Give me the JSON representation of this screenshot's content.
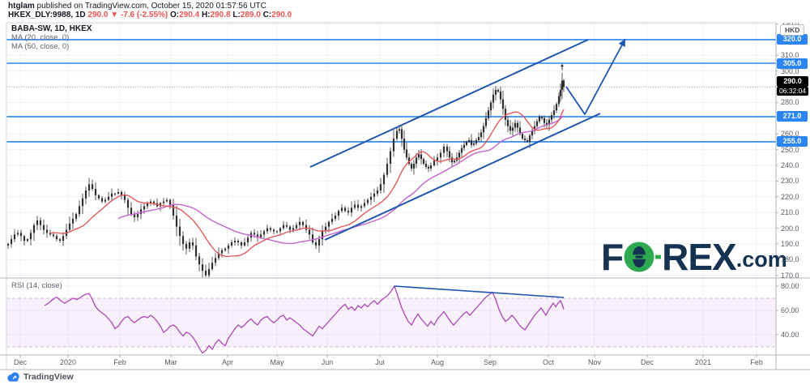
{
  "header": {
    "byline_user": "htglam",
    "byline_rest": " published on TradingView.com, October 15, 2020 01:57:56 UTC",
    "symbol": "HKEX_DLY:9988, 1D",
    "change": "290.0 ▼ -7.6 (-2.55%)",
    "o_label": "O:",
    "o_val": "290.4",
    "h_label": "H:",
    "h_val": "290.8",
    "l_label": "L:",
    "l_val": "289.0",
    "c_label": "C:",
    "c_val": "290.0"
  },
  "legend": {
    "title": "BABA-SW, 1D, HKEX",
    "ma20": "MA (20, close, 0)",
    "ma50": "MA (50, close, 0)"
  },
  "rsi_legend": "RSI (14, close)",
  "axis": {
    "currency_button": "HKD",
    "current_price_label": "290.0",
    "countdown": "06:32:04",
    "price_ticks": [
      330.0,
      310.0,
      300.0,
      280.0,
      260.0,
      250.0,
      240.0,
      230.0,
      220.0,
      210.0,
      200.0,
      190.0,
      180.0,
      170.0
    ],
    "rsi_ticks": [
      "80.00",
      "60.00",
      "40.00"
    ],
    "time_labels": [
      [
        "Dec",
        25
      ],
      [
        "2020",
        84
      ],
      [
        "Feb",
        148
      ],
      [
        "Mar",
        211
      ],
      [
        "Apr",
        281
      ],
      [
        "May",
        342
      ],
      [
        "Jun",
        404
      ],
      [
        "Jul",
        469
      ],
      [
        "Aug",
        540
      ],
      [
        "Sep",
        605
      ],
      [
        "Oct",
        677
      ],
      [
        "Nov",
        734
      ],
      [
        "Dec",
        799
      ],
      [
        "2021",
        868
      ],
      [
        "Feb",
        934
      ]
    ]
  },
  "footer": {
    "logo_text": "TradingView"
  },
  "watermark": {
    "p1": "F",
    "p2": "REX",
    "p3": ".com"
  },
  "colors": {
    "candle": "#2e2e2e",
    "ma20": "#e05a5a",
    "ma50": "#c263cf",
    "rsi": "#aa46b4",
    "rsi_band_fill": "rgba(170,70,185,0.08)",
    "rsi_band_edge": "rgba(170,70,185,0.40)",
    "level_blue": "#2a86f5",
    "trend_blue": "#1f55ae",
    "grid": "#eef2f9",
    "border": "#b2b5be",
    "price_dash": "#9598a1",
    "accent_red": "#ef5350",
    "logo_navy": "#0e2c4c",
    "logo_green": "#28a74a",
    "tv_blue": "#2e80f0"
  },
  "chart_data": {
    "type": "candlestick",
    "title": "BABA-SW, 1D, HKEX",
    "interval": "1D",
    "current_price": 290.0,
    "change": -7.6,
    "change_pct": -2.55,
    "ohlc_today": {
      "open": 290.4,
      "high": 290.8,
      "low": 289.0,
      "close": 290.0
    },
    "price_axis": {
      "min": 168.3,
      "max": 330.8,
      "labeled_levels": [
        320.0,
        305.0,
        271.0,
        255.0
      ]
    },
    "rsi_axis": {
      "min": 23.3,
      "max": 86.7,
      "band": [
        30,
        70
      ]
    },
    "indicators": [
      "MA 20 close",
      "MA 50 close",
      "RSI 14 close"
    ],
    "candle_close_anchors": [
      [
        10,
        190
      ],
      [
        14,
        193
      ],
      [
        18,
        196
      ],
      [
        22,
        197
      ],
      [
        26,
        195
      ],
      [
        30,
        192
      ],
      [
        34,
        193
      ],
      [
        38,
        197
      ],
      [
        42,
        202
      ],
      [
        46,
        205
      ],
      [
        50,
        202
      ],
      [
        54,
        199
      ],
      [
        58,
        197
      ],
      [
        62,
        196
      ],
      [
        66,
        195
      ],
      [
        70,
        193
      ],
      [
        74,
        192
      ],
      [
        78,
        195
      ],
      [
        82,
        199
      ],
      [
        86,
        203
      ],
      [
        90,
        206
      ],
      [
        94,
        209
      ],
      [
        98,
        214
      ],
      [
        102,
        219
      ],
      [
        106,
        224
      ],
      [
        110,
        228
      ],
      [
        114,
        225
      ],
      [
        118,
        221
      ],
      [
        122,
        219
      ],
      [
        126,
        217
      ],
      [
        130,
        218
      ],
      [
        134,
        220
      ],
      [
        138,
        222
      ],
      [
        142,
        222
      ],
      [
        146,
        223
      ],
      [
        150,
        221
      ],
      [
        154,
        218
      ],
      [
        158,
        213
      ],
      [
        162,
        209
      ],
      [
        166,
        207
      ],
      [
        170,
        209
      ],
      [
        174,
        212
      ],
      [
        178,
        214
      ],
      [
        182,
        216
      ],
      [
        186,
        217
      ],
      [
        190,
        216
      ],
      [
        194,
        214
      ],
      [
        198,
        216
      ],
      [
        202,
        217
      ],
      [
        206,
        218
      ],
      [
        210,
        215
      ],
      [
        214,
        208
      ],
      [
        218,
        201
      ],
      [
        222,
        195
      ],
      [
        226,
        190
      ],
      [
        230,
        187
      ],
      [
        234,
        191
      ],
      [
        238,
        189
      ],
      [
        242,
        182
      ],
      [
        246,
        177
      ],
      [
        250,
        173
      ],
      [
        254,
        170
      ],
      [
        258,
        174
      ],
      [
        262,
        178
      ],
      [
        266,
        181
      ],
      [
        270,
        184
      ],
      [
        274,
        186
      ],
      [
        278,
        187
      ],
      [
        282,
        189
      ],
      [
        286,
        191
      ],
      [
        290,
        192
      ],
      [
        294,
        191
      ],
      [
        298,
        189
      ],
      [
        302,
        191
      ],
      [
        306,
        194
      ],
      [
        310,
        197
      ],
      [
        314,
        196
      ],
      [
        318,
        194
      ],
      [
        322,
        196
      ],
      [
        326,
        198
      ],
      [
        330,
        200
      ],
      [
        334,
        199
      ],
      [
        338,
        198
      ],
      [
        342,
        198
      ],
      [
        346,
        200
      ],
      [
        350,
        202
      ],
      [
        354,
        201
      ],
      [
        358,
        199
      ],
      [
        362,
        200
      ],
      [
        366,
        202
      ],
      [
        370,
        204
      ],
      [
        374,
        202
      ],
      [
        378,
        199
      ],
      [
        382,
        196
      ],
      [
        386,
        191
      ],
      [
        390,
        189
      ],
      [
        394,
        193
      ],
      [
        398,
        198
      ],
      [
        402,
        201
      ],
      [
        406,
        204
      ],
      [
        410,
        206
      ],
      [
        414,
        208
      ],
      [
        418,
        211
      ],
      [
        422,
        213
      ],
      [
        426,
        211
      ],
      [
        430,
        210
      ],
      [
        434,
        213
      ],
      [
        438,
        215
      ],
      [
        442,
        213
      ],
      [
        446,
        214
      ],
      [
        450,
        216
      ],
      [
        454,
        218
      ],
      [
        458,
        220
      ],
      [
        462,
        222
      ],
      [
        466,
        224
      ],
      [
        470,
        228
      ],
      [
        474,
        234
      ],
      [
        478,
        241
      ],
      [
        482,
        249
      ],
      [
        486,
        257
      ],
      [
        490,
        262
      ],
      [
        493,
        263
      ],
      [
        496,
        257
      ],
      [
        499,
        250
      ],
      [
        502,
        245
      ],
      [
        505,
        241
      ],
      [
        508,
        238
      ],
      [
        511,
        241
      ],
      [
        514,
        245
      ],
      [
        517,
        247
      ],
      [
        520,
        244
      ],
      [
        523,
        241
      ],
      [
        526,
        239
      ],
      [
        529,
        238
      ],
      [
        532,
        240
      ],
      [
        536,
        243
      ],
      [
        540,
        245
      ],
      [
        544,
        248
      ],
      [
        548,
        252
      ],
      [
        552,
        249
      ],
      [
        555,
        245
      ],
      [
        558,
        242
      ],
      [
        561,
        243
      ],
      [
        564,
        245
      ],
      [
        567,
        248
      ],
      [
        570,
        251
      ],
      [
        573,
        253
      ],
      [
        576,
        255
      ],
      [
        579,
        256
      ],
      [
        582,
        253
      ],
      [
        585,
        254
      ],
      [
        588,
        256
      ],
      [
        591,
        258
      ],
      [
        594,
        261
      ],
      [
        597,
        265
      ],
      [
        600,
        270
      ],
      [
        603,
        275
      ],
      [
        606,
        280
      ],
      [
        609,
        285
      ],
      [
        612,
        288
      ],
      [
        615,
        287
      ],
      [
        618,
        282
      ],
      [
        621,
        276
      ],
      [
        624,
        269
      ],
      [
        627,
        265
      ],
      [
        630,
        262
      ],
      [
        633,
        264
      ],
      [
        636,
        267
      ],
      [
        639,
        264
      ],
      [
        642,
        260
      ],
      [
        645,
        257
      ],
      [
        648,
        256
      ],
      [
        651,
        255
      ],
      [
        654,
        259
      ],
      [
        657,
        262
      ],
      [
        660,
        265
      ],
      [
        663,
        268
      ],
      [
        666,
        271
      ],
      [
        669,
        270
      ],
      [
        672,
        267
      ],
      [
        675,
        266
      ],
      [
        678,
        269
      ],
      [
        681,
        272
      ],
      [
        684,
        275
      ],
      [
        687,
        279
      ],
      [
        690,
        284
      ],
      [
        692,
        288
      ],
      [
        694,
        294
      ],
      [
        696,
        290
      ]
    ],
    "high_overrides": {
      "490": 264.5,
      "612": 290.5,
      "694": 299
    },
    "low_overrides": {
      "254": 168.8
    },
    "rsi_anchors": [
      [
        55,
        64
      ],
      [
        60,
        66
      ],
      [
        65,
        69
      ],
      [
        70,
        71
      ],
      [
        75,
        68
      ],
      [
        80,
        66
      ],
      [
        85,
        68
      ],
      [
        90,
        70
      ],
      [
        95,
        69
      ],
      [
        100,
        71
      ],
      [
        105,
        73
      ],
      [
        110,
        74
      ],
      [
        114,
        69
      ],
      [
        118,
        63
      ],
      [
        122,
        60
      ],
      [
        126,
        58
      ],
      [
        130,
        56
      ],
      [
        134,
        53
      ],
      [
        138,
        50
      ],
      [
        142,
        45
      ],
      [
        146,
        47
      ],
      [
        150,
        51
      ],
      [
        154,
        54
      ],
      [
        158,
        55
      ],
      [
        162,
        52
      ],
      [
        166,
        50
      ],
      [
        170,
        52
      ],
      [
        174,
        54
      ],
      [
        178,
        55
      ],
      [
        182,
        54
      ],
      [
        186,
        56
      ],
      [
        190,
        54
      ],
      [
        194,
        51
      ],
      [
        198,
        47
      ],
      [
        202,
        42
      ],
      [
        206,
        44
      ],
      [
        210,
        47
      ],
      [
        214,
        48
      ],
      [
        218,
        46
      ],
      [
        222,
        42
      ],
      [
        226,
        39
      ],
      [
        230,
        42
      ],
      [
        234,
        41
      ],
      [
        238,
        38
      ],
      [
        242,
        34
      ],
      [
        246,
        29
      ],
      [
        250,
        25
      ],
      [
        254,
        27
      ],
      [
        258,
        31
      ],
      [
        262,
        28
      ],
      [
        266,
        33
      ],
      [
        270,
        36
      ],
      [
        274,
        33
      ],
      [
        278,
        31
      ],
      [
        282,
        37
      ],
      [
        286,
        41
      ],
      [
        290,
        45
      ],
      [
        294,
        48
      ],
      [
        298,
        46
      ],
      [
        302,
        48
      ],
      [
        306,
        51
      ],
      [
        310,
        53
      ],
      [
        314,
        50
      ],
      [
        318,
        48
      ],
      [
        322,
        52
      ],
      [
        326,
        54
      ],
      [
        330,
        55
      ],
      [
        334,
        52
      ],
      [
        338,
        50
      ],
      [
        342,
        52
      ],
      [
        346,
        55
      ],
      [
        350,
        56
      ],
      [
        354,
        52
      ],
      [
        358,
        54
      ],
      [
        362,
        52
      ],
      [
        366,
        50
      ],
      [
        370,
        48
      ],
      [
        374,
        45
      ],
      [
        378,
        43
      ],
      [
        382,
        41
      ],
      [
        386,
        39
      ],
      [
        390,
        43
      ],
      [
        394,
        47
      ],
      [
        398,
        45
      ],
      [
        402,
        48
      ],
      [
        406,
        51
      ],
      [
        410,
        54
      ],
      [
        414,
        57
      ],
      [
        418,
        60
      ],
      [
        422,
        63
      ],
      [
        426,
        65
      ],
      [
        430,
        61
      ],
      [
        434,
        63
      ],
      [
        438,
        60
      ],
      [
        442,
        64
      ],
      [
        446,
        62
      ],
      [
        450,
        65
      ],
      [
        454,
        63
      ],
      [
        458,
        66
      ],
      [
        462,
        68
      ],
      [
        466,
        65
      ],
      [
        470,
        68
      ],
      [
        474,
        70
      ],
      [
        478,
        72
      ],
      [
        482,
        75
      ],
      [
        487,
        80
      ],
      [
        490,
        74
      ],
      [
        493,
        68
      ],
      [
        496,
        62
      ],
      [
        500,
        56
      ],
      [
        504,
        51
      ],
      [
        508,
        48
      ],
      [
        512,
        53
      ],
      [
        516,
        57
      ],
      [
        520,
        53
      ],
      [
        524,
        50
      ],
      [
        528,
        47
      ],
      [
        532,
        51
      ],
      [
        536,
        48
      ],
      [
        540,
        53
      ],
      [
        544,
        56
      ],
      [
        548,
        59
      ],
      [
        552,
        55
      ],
      [
        556,
        51
      ],
      [
        560,
        48
      ],
      [
        564,
        51
      ],
      [
        568,
        54
      ],
      [
        572,
        57
      ],
      [
        576,
        59
      ],
      [
        580,
        56
      ],
      [
        584,
        59
      ],
      [
        588,
        62
      ],
      [
        592,
        65
      ],
      [
        596,
        68
      ],
      [
        600,
        71
      ],
      [
        604,
        73
      ],
      [
        608,
        75
      ],
      [
        612,
        69
      ],
      [
        616,
        61
      ],
      [
        620,
        55
      ],
      [
        624,
        51
      ],
      [
        628,
        53
      ],
      [
        632,
        56
      ],
      [
        636,
        53
      ],
      [
        640,
        49
      ],
      [
        644,
        46
      ],
      [
        648,
        44
      ],
      [
        652,
        48
      ],
      [
        656,
        52
      ],
      [
        660,
        56
      ],
      [
        664,
        59
      ],
      [
        668,
        62
      ],
      [
        671,
        59
      ],
      [
        674,
        56
      ],
      [
        677,
        60
      ],
      [
        680,
        63
      ],
      [
        683,
        66
      ],
      [
        686,
        63
      ],
      [
        689,
        66
      ],
      [
        692,
        68
      ],
      [
        694,
        65
      ],
      [
        696,
        61
      ]
    ],
    "drawings": {
      "channel_upper": [
        [
          383,
          206
        ],
        [
          726,
          49
        ]
      ],
      "channel_lower": [
        [
          401,
          296
        ],
        [
          741,
          140
        ]
      ],
      "projection_arrow": [
        [
          699,
          107
        ],
        [
          722,
          141
        ],
        [
          772,
          48
        ]
      ],
      "rsi_divergence": [
        [
          487,
          353
        ],
        [
          696,
          367
        ]
      ],
      "levels": [
        320.0,
        305.0,
        271.0,
        255.0
      ],
      "current_price_line": 290.0
    }
  }
}
